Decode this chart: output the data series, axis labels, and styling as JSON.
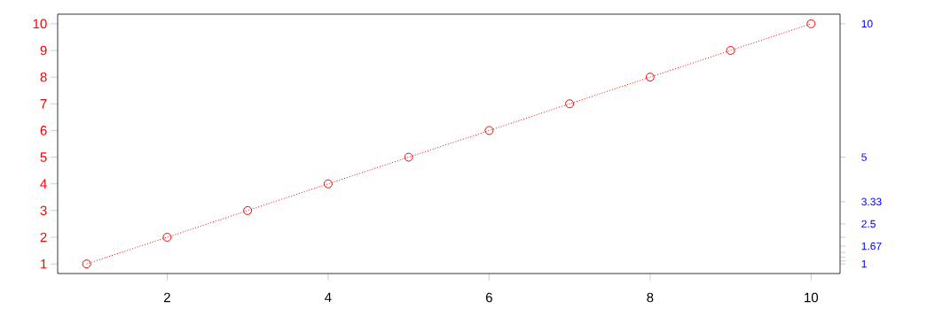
{
  "chart_data": {
    "type": "line",
    "x": [
      1,
      2,
      3,
      4,
      5,
      6,
      7,
      8,
      9,
      10
    ],
    "series": [
      {
        "color": "#ff0000",
        "values": [
          1,
          2,
          3,
          4,
          5,
          6,
          7,
          8,
          9,
          10
        ]
      }
    ],
    "marker": "circle",
    "line_style": "dotted",
    "xlim": [
      0.64,
      10.36
    ],
    "ylim": [
      0.64,
      10.36
    ],
    "y2lim": [
      0.64,
      10.36
    ],
    "xticks": [
      2,
      4,
      6,
      8,
      10
    ],
    "yticks": [
      1,
      2,
      3,
      4,
      5,
      6,
      7,
      8,
      9,
      10
    ],
    "y2ticks": [
      10,
      5,
      {
        "value": 3.333,
        "label": "3.33"
      },
      2.5,
      {
        "value": 2,
        "label": null
      },
      {
        "value": 1.667,
        "label": "1.67"
      },
      {
        "value": 1.429,
        "label": null
      },
      {
        "value": 1.25,
        "label": null
      },
      {
        "value": 1.111,
        "label": null
      },
      1
    ]
  }
}
